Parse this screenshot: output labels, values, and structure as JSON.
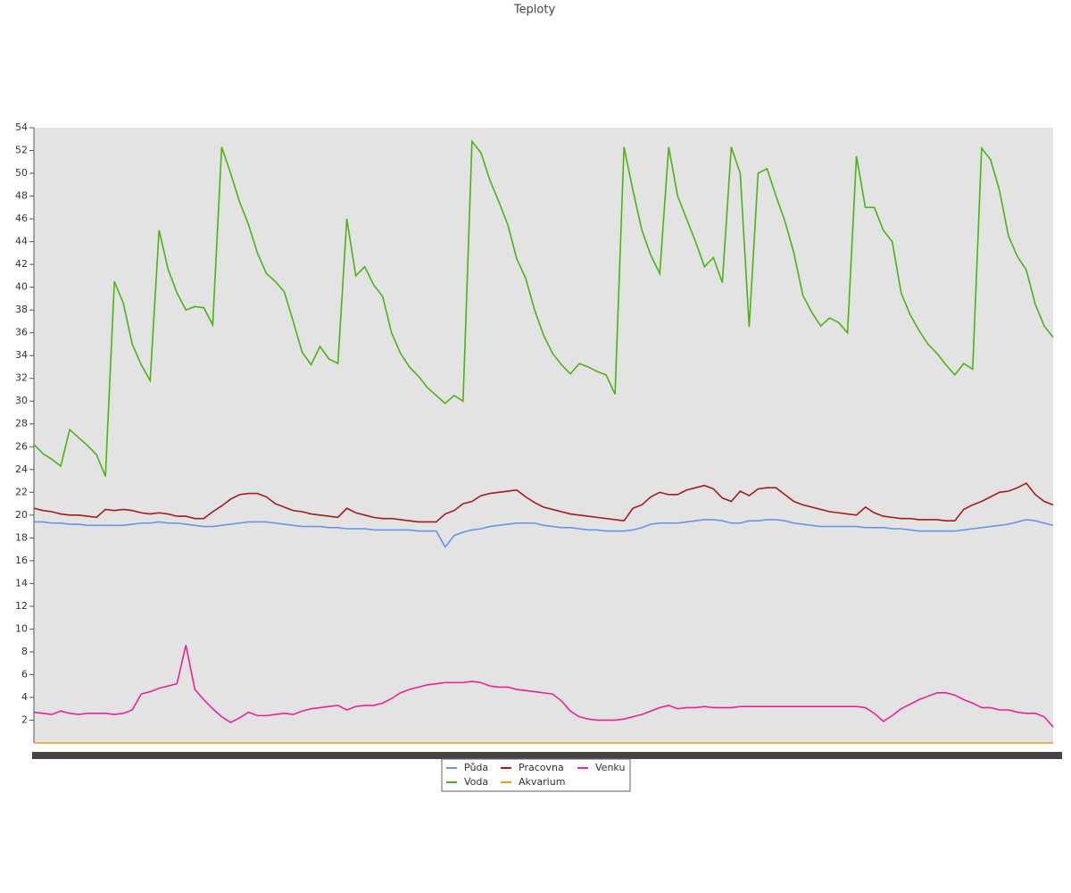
{
  "chart_data": {
    "type": "line",
    "title": "Teploty",
    "ylim": [
      0,
      54
    ],
    "yticks": [
      2,
      4,
      6,
      8,
      10,
      12,
      14,
      16,
      18,
      20,
      22,
      24,
      26,
      28,
      30,
      32,
      34,
      36,
      38,
      40,
      42,
      44,
      46,
      48,
      50,
      52,
      54
    ],
    "legend": "bottom",
    "series": [
      {
        "name": "Půda",
        "color": "#6495ed",
        "values": [
          19.4,
          19.4,
          19.3,
          19.3,
          19.2,
          19.2,
          19.1,
          19.1,
          19.1,
          19.1,
          19.1,
          19.2,
          19.3,
          19.3,
          19.4,
          19.3,
          19.3,
          19.2,
          19.1,
          19,
          19,
          19.1,
          19.2,
          19.3,
          19.4,
          19.4,
          19.4,
          19.3,
          19.2,
          19.1,
          19,
          19,
          19,
          18.9,
          18.9,
          18.8,
          18.8,
          18.8,
          18.7,
          18.7,
          18.7,
          18.7,
          18.7,
          18.6,
          18.6,
          18.6,
          17.2,
          18.2,
          18.5,
          18.7,
          18.8,
          19,
          19.1,
          19.2,
          19.3,
          19.3,
          19.3,
          19.1,
          19,
          18.9,
          18.9,
          18.8,
          18.7,
          18.7,
          18.6,
          18.6,
          18.6,
          18.7,
          18.9,
          19.2,
          19.3,
          19.3,
          19.3,
          19.4,
          19.5,
          19.6,
          19.6,
          19.5,
          19.3,
          19.3,
          19.5,
          19.5,
          19.6,
          19.6,
          19.5,
          19.3,
          19.2,
          19.1,
          19,
          19,
          19,
          19,
          19,
          18.9,
          18.9,
          18.9,
          18.8,
          18.8,
          18.7,
          18.6,
          18.6,
          18.6,
          18.6,
          18.6,
          18.7,
          18.8,
          18.9,
          19,
          19.1,
          19.2,
          19.4,
          19.6,
          19.5,
          19.3,
          19.1
        ]
      },
      {
        "name": "Voda",
        "color": "#4cb316",
        "values": [
          26.2,
          25.4,
          24.9,
          24.3,
          27.5,
          26.8,
          26.1,
          25.3,
          23.4,
          40.5,
          38.6,
          35,
          33.2,
          31.8,
          45,
          41.6,
          39.5,
          38,
          38.3,
          38.2,
          36.7,
          52.3,
          50,
          47.5,
          45.5,
          43,
          41.2,
          40.5,
          39.6,
          37,
          34.3,
          33.2,
          34.8,
          33.7,
          33.3,
          46,
          41,
          41.8,
          40.2,
          39.2,
          36,
          34.2,
          33,
          32.2,
          31.2,
          30.5,
          29.8,
          30.5,
          30,
          52.8,
          51.8,
          49.4,
          47.5,
          45.5,
          42.5,
          40.8,
          38,
          35.8,
          34.2,
          33.2,
          32.4,
          33.3,
          33,
          32.6,
          32.3,
          30.6,
          52.3,
          48.5,
          45,
          42.8,
          41.2,
          52.3,
          48,
          46,
          44,
          41.8,
          42.6,
          40.4,
          52.3,
          50,
          36.5,
          50,
          50.4,
          48,
          45.8,
          43,
          39.3,
          37.8,
          36.6,
          37.3,
          36.9,
          36,
          51.5,
          47,
          47,
          45,
          44,
          39.5,
          37.6,
          36.2,
          35,
          34.2,
          33.2,
          32.3,
          33.3,
          32.8,
          52.2,
          51.2,
          48.5,
          44.5,
          42.7,
          41.5,
          38.5,
          36.6,
          35.6
        ]
      },
      {
        "name": "Pracovna",
        "color": "#a51c1c",
        "values": [
          20.6,
          20.4,
          20.3,
          20.1,
          20,
          20,
          19.9,
          19.8,
          20.5,
          20.4,
          20.5,
          20.4,
          20.2,
          20.1,
          20.2,
          20.1,
          19.9,
          19.9,
          19.7,
          19.7,
          20.3,
          20.8,
          21.4,
          21.8,
          21.9,
          21.9,
          21.6,
          21,
          20.7,
          20.4,
          20.3,
          20.1,
          20,
          19.9,
          19.8,
          20.6,
          20.2,
          20,
          19.8,
          19.7,
          19.7,
          19.6,
          19.5,
          19.4,
          19.4,
          19.4,
          20.1,
          20.4,
          21,
          21.2,
          21.7,
          21.9,
          22,
          22.1,
          22.2,
          21.6,
          21.1,
          20.7,
          20.5,
          20.3,
          20.1,
          20,
          19.9,
          19.8,
          19.7,
          19.6,
          19.5,
          20.6,
          20.9,
          21.6,
          22,
          21.8,
          21.8,
          22.2,
          22.4,
          22.6,
          22.3,
          21.5,
          21.2,
          22.1,
          21.7,
          22.3,
          22.4,
          22.4,
          21.8,
          21.2,
          20.9,
          20.7,
          20.5,
          20.3,
          20.2,
          20.1,
          20,
          20.7,
          20.2,
          19.9,
          19.8,
          19.7,
          19.7,
          19.6,
          19.6,
          19.6,
          19.5,
          19.5,
          20.5,
          20.9,
          21.2,
          21.6,
          22,
          22.1,
          22.4,
          22.8,
          21.8,
          21.2,
          20.9
        ]
      },
      {
        "name": "Akvarium",
        "color": "#e6a020",
        "values": [
          0,
          0,
          0,
          0,
          0,
          0,
          0,
          0,
          0,
          0,
          0,
          0,
          0,
          0,
          0,
          0,
          0,
          0,
          0,
          0,
          0,
          0,
          0,
          0,
          0,
          0,
          0,
          0,
          0,
          0,
          0,
          0,
          0,
          0,
          0,
          0,
          0,
          0,
          0,
          0,
          0,
          0,
          0,
          0,
          0,
          0,
          0,
          0,
          0,
          0,
          0,
          0,
          0,
          0,
          0,
          0,
          0,
          0,
          0,
          0,
          0,
          0,
          0,
          0,
          0,
          0,
          0,
          0,
          0,
          0,
          0,
          0,
          0,
          0,
          0,
          0,
          0,
          0,
          0,
          0,
          0,
          0,
          0,
          0,
          0,
          0,
          0,
          0,
          0,
          0,
          0,
          0,
          0,
          0,
          0,
          0,
          0,
          0,
          0,
          0,
          0,
          0,
          0,
          0,
          0,
          0,
          0,
          0,
          0,
          0,
          0,
          0,
          0,
          0,
          0
        ]
      },
      {
        "name": "Venku",
        "color": "#e8239a",
        "values": [
          2.7,
          2.6,
          2.5,
          2.8,
          2.6,
          2.5,
          2.6,
          2.6,
          2.6,
          2.5,
          2.6,
          2.9,
          4.3,
          4.5,
          4.8,
          5,
          5.2,
          8.6,
          4.7,
          3.8,
          3,
          2.3,
          1.8,
          2.2,
          2.7,
          2.4,
          2.4,
          2.5,
          2.6,
          2.5,
          2.8,
          3,
          3.1,
          3.2,
          3.3,
          2.9,
          3.2,
          3.3,
          3.3,
          3.5,
          3.9,
          4.4,
          4.7,
          4.9,
          5.1,
          5.2,
          5.3,
          5.3,
          5.3,
          5.4,
          5.3,
          5,
          4.9,
          4.9,
          4.7,
          4.6,
          4.5,
          4.4,
          4.3,
          3.7,
          2.8,
          2.3,
          2.1,
          2,
          2,
          2,
          2.1,
          2.3,
          2.5,
          2.8,
          3.1,
          3.3,
          3,
          3.1,
          3.1,
          3.2,
          3.1,
          3.1,
          3.1,
          3.2,
          3.2,
          3.2,
          3.2,
          3.2,
          3.2,
          3.2,
          3.2,
          3.2,
          3.2,
          3.2,
          3.2,
          3.2,
          3.2,
          3.1,
          2.6,
          1.9,
          2.4,
          3,
          3.4,
          3.8,
          4.1,
          4.4,
          4.4,
          4.2,
          3.8,
          3.5,
          3.1,
          3.1,
          2.9,
          2.9,
          2.7,
          2.6,
          2.6,
          2.3,
          1.4
        ]
      }
    ]
  }
}
